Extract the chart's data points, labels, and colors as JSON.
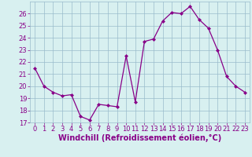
{
  "x": [
    0,
    1,
    2,
    3,
    4,
    5,
    6,
    7,
    8,
    9,
    10,
    11,
    12,
    13,
    14,
    15,
    16,
    17,
    18,
    19,
    20,
    21,
    22,
    23
  ],
  "y": [
    21.5,
    20.0,
    19.5,
    19.2,
    19.3,
    17.5,
    17.2,
    18.5,
    18.4,
    18.3,
    22.5,
    18.7,
    23.7,
    23.9,
    25.4,
    26.1,
    26.0,
    26.6,
    25.5,
    24.8,
    23.0,
    20.8,
    20.0,
    19.5
  ],
  "line_color": "#880088",
  "marker": "D",
  "marker_size": 2.0,
  "linewidth": 0.9,
  "xlabel": "Windchill (Refroidissement éolien,°C)",
  "xlabel_fontsize": 7,
  "ylim": [
    17,
    27
  ],
  "xlim": [
    -0.5,
    23.5
  ],
  "yticks": [
    17,
    18,
    19,
    20,
    21,
    22,
    23,
    24,
    25,
    26
  ],
  "xticks": [
    0,
    1,
    2,
    3,
    4,
    5,
    6,
    7,
    8,
    9,
    10,
    11,
    12,
    13,
    14,
    15,
    16,
    17,
    18,
    19,
    20,
    21,
    22,
    23
  ],
  "grid_color": "#99bbcc",
  "bg_color": "#d8f0f0",
  "tick_fontsize": 6,
  "tick_label_color": "#880088",
  "xlabel_bold": true
}
